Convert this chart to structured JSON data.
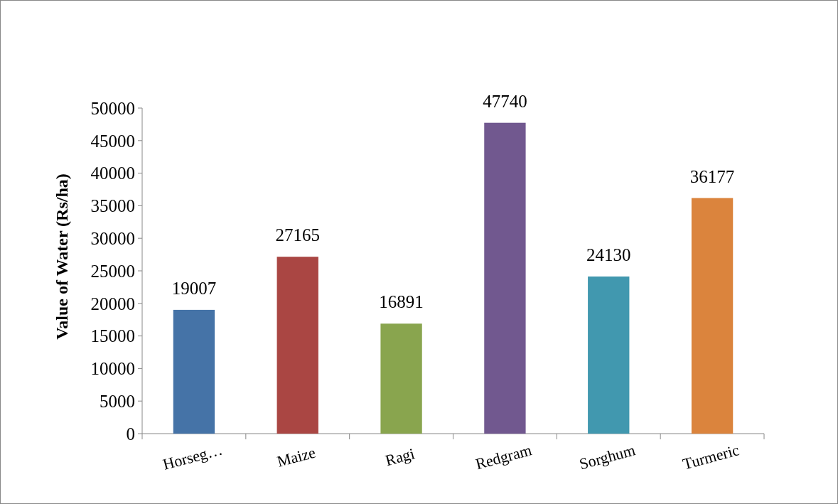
{
  "chart_data": {
    "type": "bar",
    "ylabel": "Value of Water (Rs/ha)",
    "categories": [
      "Horseg…",
      "Maize",
      "Ragi",
      "Redgram",
      "Sorghum",
      "Turmeric"
    ],
    "values": [
      19007,
      27165,
      16891,
      47740,
      24130,
      36177
    ],
    "colors": [
      "#4573a7",
      "#aa4643",
      "#89a54e",
      "#71588f",
      "#4198af",
      "#db843d"
    ],
    "ylim": [
      0,
      50000
    ],
    "yticks": [
      0,
      5000,
      10000,
      15000,
      20000,
      25000,
      30000,
      35000,
      40000,
      45000,
      50000
    ],
    "data_labels": true,
    "grid": false
  }
}
